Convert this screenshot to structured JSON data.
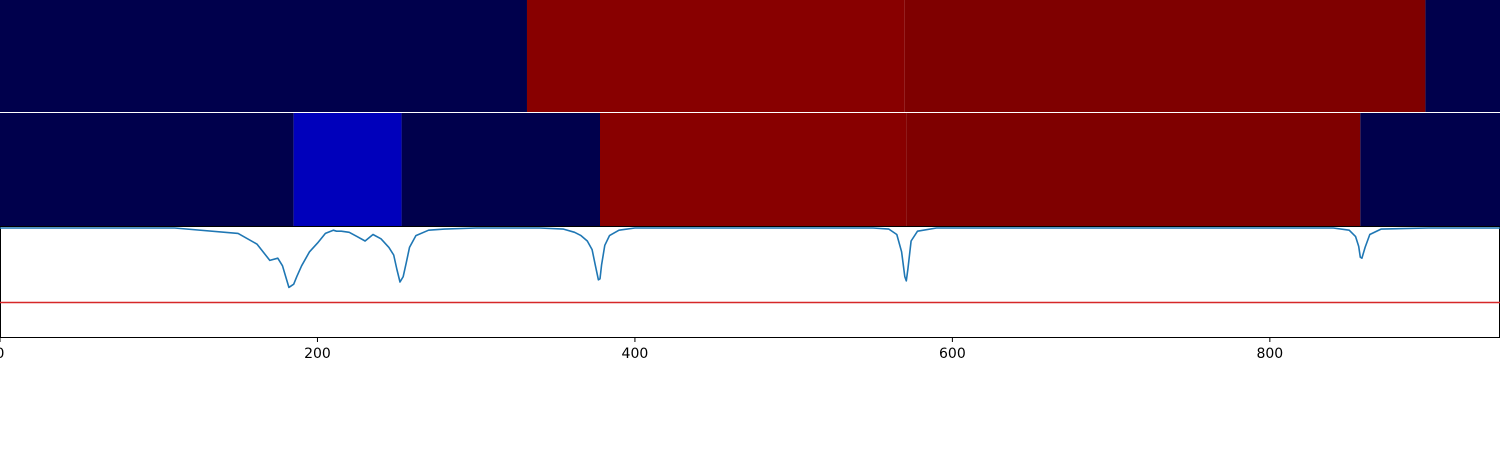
{
  "chart_data": [
    {
      "type": "heatmap",
      "panel": "top-bar",
      "xlim": [
        0,
        945
      ],
      "segments": [
        {
          "start": 0,
          "end": 332,
          "color": "#00004c"
        },
        {
          "start": 332,
          "end": 570,
          "color": "#880000"
        },
        {
          "start": 570,
          "end": 898,
          "color": "#7f0000"
        },
        {
          "start": 898,
          "end": 945,
          "color": "#00004c"
        }
      ]
    },
    {
      "type": "heatmap",
      "panel": "middle-bar",
      "xlim": [
        0,
        945
      ],
      "segments": [
        {
          "start": 0,
          "end": 185,
          "color": "#00004c"
        },
        {
          "start": 185,
          "end": 253,
          "color": "#0000bb"
        },
        {
          "start": 253,
          "end": 378,
          "color": "#00004c"
        },
        {
          "start": 378,
          "end": 571,
          "color": "#880000"
        },
        {
          "start": 571,
          "end": 857,
          "color": "#7f0000"
        },
        {
          "start": 857,
          "end": 945,
          "color": "#00004c"
        }
      ]
    },
    {
      "type": "line",
      "panel": "signal",
      "xlim": [
        0,
        945
      ],
      "ylim": [
        0,
        1
      ],
      "xticks": [
        0,
        200,
        400,
        600,
        800
      ],
      "xtick_labels": [
        "0",
        "200",
        "400",
        "600",
        "800"
      ],
      "threshold": {
        "value": 0.31,
        "color": "#d62728"
      },
      "series": [
        {
          "color": "#1f77b4",
          "x": [
            0,
            110,
            150,
            162,
            170,
            175,
            178,
            180,
            182,
            185,
            187,
            190,
            195,
            200,
            205,
            210,
            212,
            215,
            220,
            225,
            230,
            235,
            240,
            245,
            248,
            250,
            252,
            254,
            256,
            258,
            262,
            270,
            280,
            300,
            340,
            355,
            362,
            366,
            370,
            373,
            375,
            377,
            378,
            379,
            381,
            384,
            390,
            400,
            420,
            550,
            560,
            565,
            568,
            570,
            571,
            572,
            574,
            578,
            590,
            620,
            840,
            850,
            854,
            856,
            857,
            858,
            860,
            863,
            870,
            900,
            945
          ],
          "y": [
            1.0,
            1.0,
            0.95,
            0.85,
            0.7,
            0.72,
            0.65,
            0.55,
            0.45,
            0.48,
            0.55,
            0.65,
            0.78,
            0.86,
            0.95,
            0.98,
            0.97,
            0.97,
            0.96,
            0.92,
            0.88,
            0.94,
            0.9,
            0.82,
            0.75,
            0.62,
            0.5,
            0.55,
            0.68,
            0.82,
            0.93,
            0.98,
            0.99,
            1.0,
            1.0,
            0.99,
            0.96,
            0.93,
            0.88,
            0.8,
            0.66,
            0.52,
            0.53,
            0.66,
            0.84,
            0.93,
            0.98,
            1.0,
            1.0,
            1.0,
            0.99,
            0.94,
            0.78,
            0.55,
            0.51,
            0.62,
            0.88,
            0.97,
            1.0,
            1.0,
            1.0,
            0.98,
            0.92,
            0.83,
            0.73,
            0.72,
            0.82,
            0.94,
            0.99,
            1.0,
            1.0
          ]
        }
      ]
    }
  ]
}
